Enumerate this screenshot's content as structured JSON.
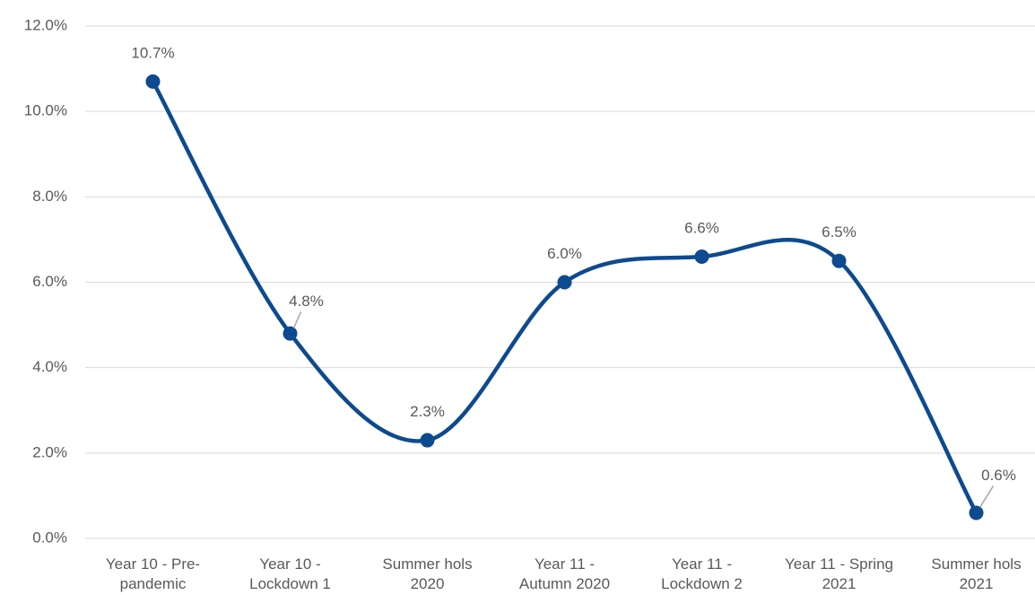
{
  "chart_data": {
    "type": "line",
    "categories": [
      "Year 10 - Pre-pandemic",
      "Year 10 - Lockdown 1",
      "Summer hols 2020",
      "Year 11 - Autumn 2020",
      "Year 11 - Lockdown 2",
      "Year 11 - Spring 2021",
      "Summer hols 2021"
    ],
    "values": [
      10.7,
      4.8,
      2.3,
      6.0,
      6.6,
      6.5,
      0.6
    ],
    "value_labels": [
      "10.7%",
      "4.8%",
      "2.3%",
      "6.0%",
      "6.6%",
      "6.5%",
      "0.6%"
    ],
    "color": "#0d4a8f",
    "ylim": [
      0,
      12
    ],
    "yticks": [
      {
        "value": 0,
        "label": "0.0%"
      },
      {
        "value": 2,
        "label": "2.0%"
      },
      {
        "value": 4,
        "label": "4.0%"
      },
      {
        "value": 6,
        "label": "6.0%"
      },
      {
        "value": 8,
        "label": "8.0%"
      },
      {
        "value": 10,
        "label": "10.0%"
      },
      {
        "value": 12,
        "label": "12.0%"
      }
    ],
    "grid": true,
    "smooth": true
  }
}
